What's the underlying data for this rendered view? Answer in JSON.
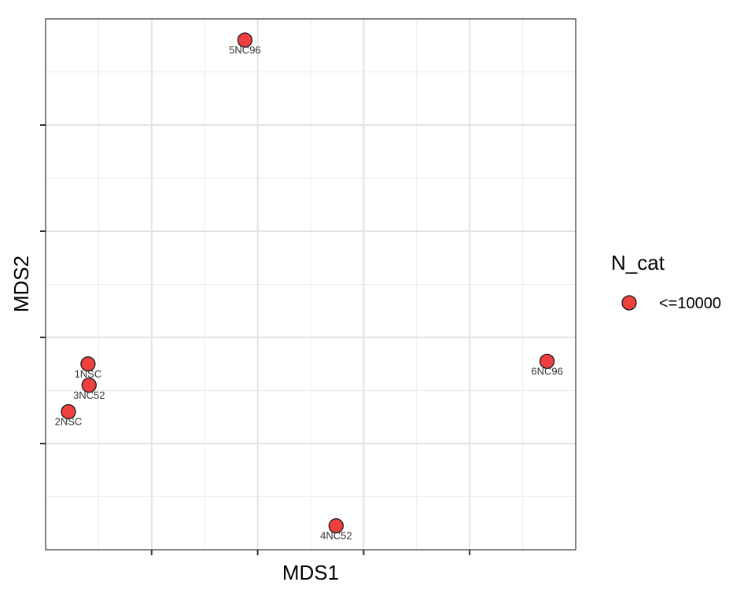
{
  "chart_data": {
    "type": "scatter",
    "xlabel": "MDS1",
    "ylabel": "MDS2",
    "grid": true,
    "legend": {
      "title": "N_cat",
      "position": "right",
      "entries": [
        {
          "label": "<=10000",
          "color": "#ef4040"
        }
      ]
    },
    "marker_color": "#ef4040",
    "marker_edge_color": "#1a1a1a",
    "xlim": [
      0,
      10
    ],
    "ylim": [
      0,
      10
    ],
    "x_major_ticks": [
      2,
      4,
      6,
      8
    ],
    "x_minor_ticks": [
      1,
      3,
      5,
      7,
      9
    ],
    "y_major_ticks": [
      2,
      4,
      6,
      8
    ],
    "y_minor_ticks": [
      1,
      3,
      5,
      7,
      9
    ],
    "points": [
      {
        "label": "1NSC",
        "x": 0.8,
        "y": 3.5
      },
      {
        "label": "3NC52",
        "x": 0.82,
        "y": 3.1
      },
      {
        "label": "2NSC",
        "x": 0.43,
        "y": 2.6
      },
      {
        "label": "5NC96",
        "x": 3.76,
        "y": 9.6
      },
      {
        "label": "4NC52",
        "x": 5.48,
        "y": 0.45
      },
      {
        "label": "6NC96",
        "x": 9.46,
        "y": 3.55
      }
    ]
  }
}
